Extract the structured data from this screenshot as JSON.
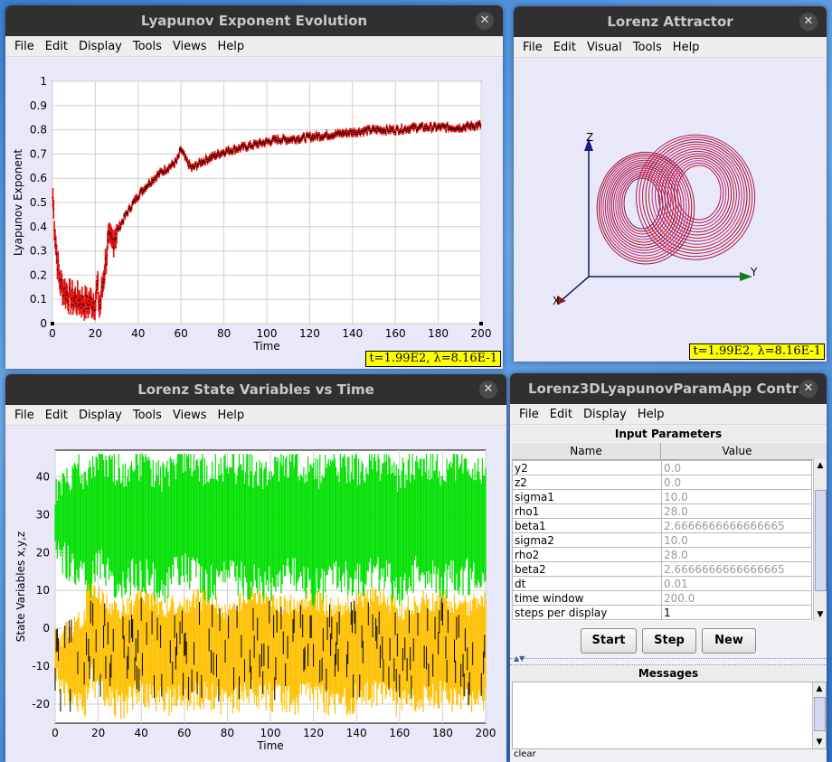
{
  "windows": {
    "lyap": {
      "title": "Lyapunov Exponent Evolution",
      "menu": [
        "File",
        "Edit",
        "Display",
        "Tools",
        "Views",
        "Help"
      ],
      "status": "t=1.99E2, λ=8.16E-1"
    },
    "attractor": {
      "title": "Lorenz Attractor",
      "menu": [
        "File",
        "Edit",
        "Visual",
        "Tools",
        "Help"
      ],
      "status": "t=1.99E2, λ=8.16E-1",
      "axes": {
        "x": "X",
        "y": "Y",
        "z": "Z"
      }
    },
    "state": {
      "title": "Lorenz State Variables vs Time",
      "menu": [
        "File",
        "Edit",
        "Display",
        "Tools",
        "Views",
        "Help"
      ]
    },
    "control": {
      "title": "Lorenz3DLyapunovParamApp Contr…",
      "menu": [
        "File",
        "Edit",
        "Display",
        "Help"
      ],
      "params_title": "Input Parameters",
      "col_name": "Name",
      "col_value": "Value",
      "params": [
        {
          "name": "y2",
          "value": "0.0"
        },
        {
          "name": "z2",
          "value": "0.0"
        },
        {
          "name": "sigma1",
          "value": "10.0"
        },
        {
          "name": "rho1",
          "value": "28.0"
        },
        {
          "name": "beta1",
          "value": "2.6666666666666665"
        },
        {
          "name": "sigma2",
          "value": "10.0"
        },
        {
          "name": "rho2",
          "value": "28.0"
        },
        {
          "name": "beta2",
          "value": "2.6666666666666665"
        },
        {
          "name": "dt",
          "value": "0.01"
        },
        {
          "name": "time window",
          "value": "200.0"
        },
        {
          "name": "steps per display",
          "value": "1"
        }
      ],
      "buttons": {
        "start": "Start",
        "step": "Step",
        "new": "New"
      },
      "messages_title": "Messages",
      "clear_label": "clear"
    }
  },
  "chart_data": [
    {
      "type": "scatter",
      "title": "",
      "xlabel": "Time",
      "ylabel": "Lyapunov Exponent",
      "xlim": [
        0,
        200
      ],
      "ylim": [
        0,
        1.0
      ],
      "xticks": [
        0,
        20,
        40,
        60,
        80,
        100,
        120,
        140,
        160,
        180,
        200
      ],
      "yticks": [
        0,
        0.1,
        0.2,
        0.3,
        0.4,
        0.5,
        0.6,
        0.7,
        0.8,
        0.9,
        1.0
      ],
      "colors": {
        "band": "#e01010",
        "points": "#000000"
      },
      "series": [
        {
          "x": [
            0,
            1,
            2,
            3,
            4,
            6,
            8,
            10,
            12,
            14,
            16,
            18,
            20,
            21,
            22,
            24,
            26,
            28,
            30,
            35,
            40,
            45,
            50,
            55,
            58,
            60,
            62,
            65,
            70,
            75,
            80,
            85,
            90,
            95,
            100,
            105,
            110,
            120,
            130,
            140,
            150,
            160,
            170,
            180,
            190,
            200
          ],
          "values": [
            0.55,
            0.4,
            0.28,
            0.2,
            0.16,
            0.13,
            0.11,
            0.1,
            0.1,
            0.09,
            0.08,
            0.09,
            0.09,
            0.16,
            0.06,
            0.2,
            0.34,
            0.34,
            0.38,
            0.46,
            0.53,
            0.58,
            0.62,
            0.65,
            0.67,
            0.72,
            0.68,
            0.64,
            0.67,
            0.69,
            0.71,
            0.72,
            0.73,
            0.74,
            0.75,
            0.76,
            0.76,
            0.77,
            0.78,
            0.79,
            0.8,
            0.8,
            0.81,
            0.81,
            0.81,
            0.82
          ]
        }
      ]
    },
    {
      "type": "line",
      "title": "",
      "xlabel": "Time",
      "ylabel": "State Variables x,y,z",
      "xlim": [
        0,
        200
      ],
      "ylim": [
        -25,
        47
      ],
      "xticks": [
        0,
        20,
        40,
        60,
        80,
        100,
        120,
        140,
        160,
        180,
        200
      ],
      "yticks": [
        -20,
        -10,
        0,
        10,
        20,
        30,
        40
      ],
      "colors": {
        "z": "#00e000",
        "x": "#ffc000",
        "y": "#000000"
      },
      "series": [
        {
          "x": [
            0,
            10,
            16,
            20,
            30,
            40,
            50,
            60,
            70,
            80,
            90,
            100,
            110,
            120,
            130,
            140,
            150,
            160,
            170,
            180,
            190,
            200
          ],
          "values": [
            27,
            27,
            25,
            30,
            25,
            28,
            24,
            30,
            25,
            27,
            26,
            25,
            29,
            24,
            27,
            26,
            28,
            24,
            29,
            26,
            27,
            27
          ]
        },
        {
          "x": [
            0,
            5,
            10,
            14,
            16,
            20,
            30,
            40,
            50,
            60,
            70,
            80,
            90,
            100,
            110,
            120,
            130,
            140,
            150,
            160,
            170,
            180,
            190,
            200
          ],
          "values": [
            -8,
            -9,
            -10,
            -8,
            0,
            -4,
            -8,
            -5,
            -7,
            -6,
            -5,
            -8,
            -4,
            -6,
            -7,
            -5,
            -8,
            -6,
            -4,
            -8,
            -6,
            -5,
            -7,
            -6
          ]
        }
      ]
    }
  ]
}
